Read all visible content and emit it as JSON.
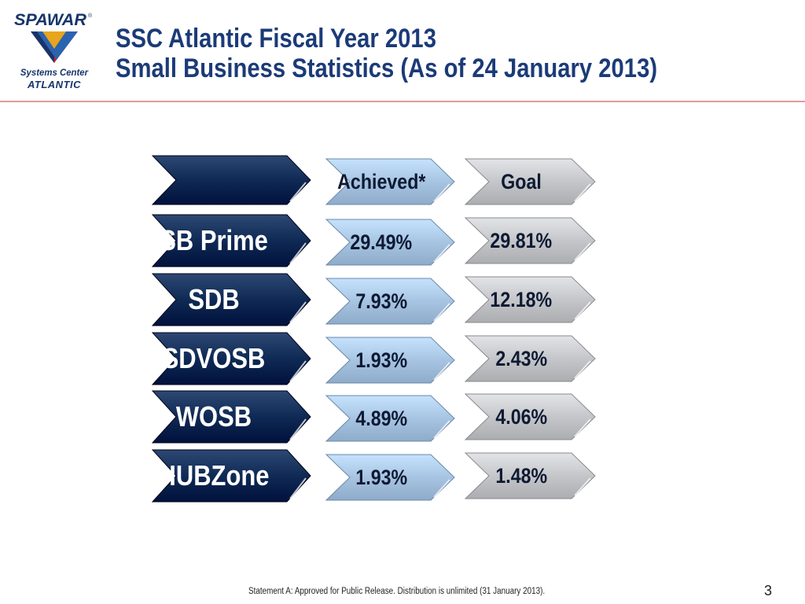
{
  "logo": {
    "brand": "SPAWAR",
    "line1": "Systems Center",
    "line2": "ATLANTIC",
    "colors": {
      "navy": "#16356b",
      "red": "#c8202f",
      "gold": "#e8a51d",
      "blue": "#2a63b0"
    }
  },
  "title": {
    "line1": "SSC Atlantic Fiscal Year 2013",
    "line2": "Small Business Statistics (As of 24 January 2013)"
  },
  "table": {
    "header": {
      "achieved": "Achieved*",
      "goal": "Goal"
    },
    "rows": [
      {
        "label": "SB Prime",
        "achieved": "29.49%",
        "goal": "29.81%"
      },
      {
        "label": "SDB",
        "achieved": "7.93%",
        "goal": "12.18%"
      },
      {
        "label": "SDVOSB",
        "achieved": "1.93%",
        "goal": "2.43%"
      },
      {
        "label": "WOSB",
        "achieved": "4.89%",
        "goal": "4.06%"
      },
      {
        "label": "HUBZone",
        "achieved": "1.93%",
        "goal": "1.48%"
      }
    ],
    "colors": {
      "label": "#0f2a55",
      "achieved": "#a7c4e2",
      "goal": "#c5c6c9"
    }
  },
  "footer": {
    "statement": "Statement A: Approved for Public Release. Distribution is unlimited (31 January 2013).",
    "page": "3"
  }
}
